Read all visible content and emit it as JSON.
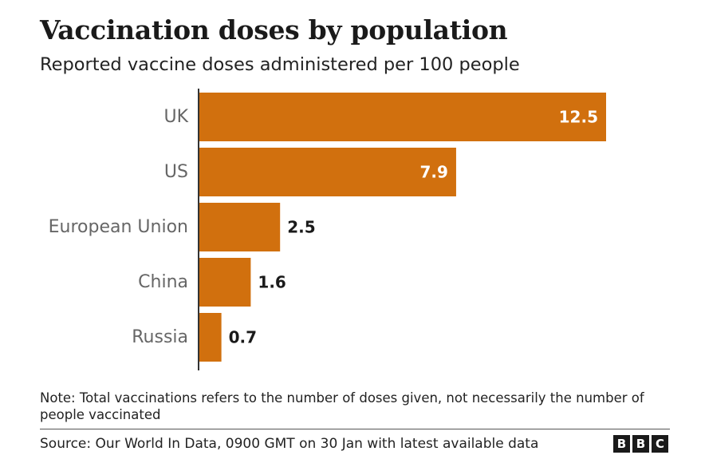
{
  "chart_data": {
    "type": "bar",
    "orientation": "horizontal",
    "title": "Vaccination doses by population",
    "subtitle": "Reported vaccine doses administered per 100 people",
    "categories": [
      "UK",
      "US",
      "European Union",
      "China",
      "Russia"
    ],
    "values": [
      12.5,
      7.9,
      2.5,
      1.6,
      0.7
    ],
    "value_labels": [
      "12.5",
      "7.9",
      "2.5",
      "1.6",
      "0.7"
    ],
    "xlim": [
      0,
      12.5
    ],
    "grid": false,
    "bar_color": "#d1700e",
    "label_inside_color": "#ffffff",
    "label_outside_color": "#1a1a1a"
  },
  "footer": {
    "note": "Note: Total vaccinations refers to the number of doses given, not necessarily the number of people vaccinated",
    "source": "Source: Our World In Data, 0900 GMT on 30 Jan with latest available data",
    "logo_letters": [
      "B",
      "B",
      "C"
    ]
  }
}
